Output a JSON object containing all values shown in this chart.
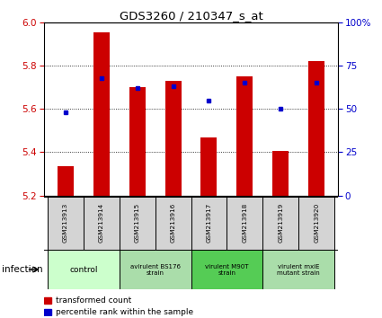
{
  "title": "GDS3260 / 210347_s_at",
  "samples": [
    "GSM213913",
    "GSM213914",
    "GSM213915",
    "GSM213916",
    "GSM213917",
    "GSM213918",
    "GSM213919",
    "GSM213920"
  ],
  "bar_values": [
    5.335,
    5.955,
    5.7,
    5.73,
    5.47,
    5.75,
    5.405,
    5.82
  ],
  "percentile_values": [
    48,
    68,
    62,
    63,
    55,
    65,
    50,
    65
  ],
  "ylim_left": [
    5.2,
    6.0
  ],
  "ylim_right": [
    0,
    100
  ],
  "yticks_left": [
    5.2,
    5.4,
    5.6,
    5.8,
    6.0
  ],
  "yticks_right": [
    0,
    25,
    50,
    75,
    100
  ],
  "yticklabels_right": [
    "0",
    "25",
    "50",
    "75",
    "100%"
  ],
  "bar_color": "#cc0000",
  "dot_color": "#0000cc",
  "bar_bottom": 5.2,
  "groups": [
    {
      "label": "control",
      "indices": [
        0,
        1
      ],
      "color": "#ccffcc"
    },
    {
      "label": "avirulent BS176\nstrain",
      "indices": [
        2,
        3
      ],
      "color": "#aaddaa"
    },
    {
      "label": "virulent M90T\nstrain",
      "indices": [
        4,
        5
      ],
      "color": "#55cc55"
    },
    {
      "label": "virulent mxiE\nmutant strain",
      "indices": [
        6,
        7
      ],
      "color": "#aaddaa"
    }
  ],
  "xlabel_label": "infection",
  "legend_items": [
    {
      "color": "#cc0000",
      "label": "transformed count"
    },
    {
      "color": "#0000cc",
      "label": "percentile rank within the sample"
    }
  ],
  "grid_color": "black",
  "tick_color_left": "#cc0000",
  "tick_color_right": "#0000cc",
  "sample_box_color": "#d4d4d4",
  "bar_width": 0.45
}
